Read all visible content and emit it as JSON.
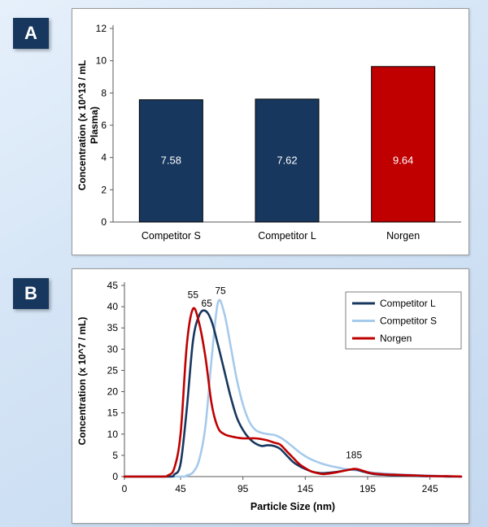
{
  "panels": [
    {
      "label": "A"
    },
    {
      "label": "B"
    }
  ],
  "colors": {
    "navy": "#17375E",
    "light_blue": "#A6CAEC",
    "red": "#C00000",
    "axis": "#595959",
    "white": "#FFFFFF"
  },
  "chart_data": [
    {
      "type": "bar",
      "panel": "A",
      "ylabel": "Concentration (x 10^13 / mL Plasma)",
      "ylabel_lines": [
        "Concentration (x 10^13 / mL",
        "Plasma)"
      ],
      "categories": [
        "Competitor S",
        "Competitor L",
        "Norgen"
      ],
      "values": [
        7.58,
        7.62,
        9.64
      ],
      "value_labels": [
        "7.58",
        "7.62",
        "9.64"
      ],
      "bar_colors": [
        "#17375E",
        "#17375E",
        "#C00000"
      ],
      "data_label_color": "#FFFFFF",
      "ylim": [
        0,
        12
      ],
      "ytick_step": 2,
      "grid": false,
      "legend": null
    },
    {
      "type": "line",
      "panel": "B",
      "xlabel": "Particle Size (nm)",
      "ylabel": "Concentration (x 10^7 / mL)",
      "xlim": [
        0,
        270
      ],
      "xticks": [
        0,
        45,
        95,
        145,
        195,
        245
      ],
      "ylim": [
        0,
        45
      ],
      "ytick_step": 5,
      "grid": false,
      "legend": {
        "position": "top-right",
        "entries": [
          "Competitor L",
          "Competitor S",
          "Norgen"
        ]
      },
      "draw_order": [
        1,
        0,
        2
      ],
      "series": [
        {
          "name": "Competitor L",
          "color": "#17375E",
          "points": [
            [
              0,
              0
            ],
            [
              35,
              0
            ],
            [
              40,
              0.5
            ],
            [
              45,
              3
            ],
            [
              50,
              16
            ],
            [
              55,
              32
            ],
            [
              60,
              38
            ],
            [
              65,
              39
            ],
            [
              70,
              36.5
            ],
            [
              75,
              31
            ],
            [
              80,
              25
            ],
            [
              85,
              19
            ],
            [
              90,
              14
            ],
            [
              95,
              11
            ],
            [
              100,
              9
            ],
            [
              105,
              7.8
            ],
            [
              110,
              7.2
            ],
            [
              115,
              7.4
            ],
            [
              120,
              7.2
            ],
            [
              125,
              6.5
            ],
            [
              130,
              5
            ],
            [
              135,
              3.5
            ],
            [
              140,
              2.5
            ],
            [
              145,
              1.8
            ],
            [
              150,
              1.2
            ],
            [
              155,
              0.9
            ],
            [
              160,
              0.8
            ],
            [
              170,
              1.1
            ],
            [
              180,
              1.6
            ],
            [
              185,
              1.7
            ],
            [
              190,
              1.3
            ],
            [
              195,
              0.9
            ],
            [
              200,
              0.6
            ],
            [
              210,
              0.4
            ],
            [
              220,
              0.3
            ],
            [
              230,
              0.2
            ],
            [
              240,
              0.1
            ],
            [
              250,
              0.1
            ],
            [
              260,
              0
            ],
            [
              270,
              0
            ]
          ]
        },
        {
          "name": "Competitor S",
          "color": "#A6CAEC",
          "points": [
            [
              0,
              0
            ],
            [
              45,
              0
            ],
            [
              50,
              0.3
            ],
            [
              55,
              1
            ],
            [
              60,
              4
            ],
            [
              65,
              12
            ],
            [
              70,
              28
            ],
            [
              75,
              41
            ],
            [
              80,
              38.5
            ],
            [
              85,
              31
            ],
            [
              90,
              23
            ],
            [
              95,
              17
            ],
            [
              100,
              13
            ],
            [
              105,
              11
            ],
            [
              110,
              10.3
            ],
            [
              115,
              10
            ],
            [
              120,
              9.8
            ],
            [
              125,
              9.2
            ],
            [
              130,
              8.2
            ],
            [
              135,
              7
            ],
            [
              140,
              5.8
            ],
            [
              145,
              4.8
            ],
            [
              150,
              4
            ],
            [
              155,
              3.4
            ],
            [
              160,
              2.9
            ],
            [
              165,
              2.5
            ],
            [
              170,
              2.2
            ],
            [
              175,
              1.9
            ],
            [
              180,
              1.7
            ],
            [
              185,
              1.5
            ],
            [
              190,
              1.3
            ],
            [
              195,
              1.1
            ],
            [
              200,
              0.9
            ],
            [
              210,
              0.7
            ],
            [
              220,
              0.5
            ],
            [
              230,
              0.4
            ],
            [
              240,
              0.3
            ],
            [
              250,
              0.2
            ],
            [
              260,
              0.1
            ],
            [
              270,
              0
            ]
          ]
        },
        {
          "name": "Norgen",
          "color": "#C00000",
          "points": [
            [
              0,
              0
            ],
            [
              30,
              0
            ],
            [
              35,
              0.3
            ],
            [
              40,
              2
            ],
            [
              45,
              10
            ],
            [
              50,
              31
            ],
            [
              55,
              39.5
            ],
            [
              60,
              36
            ],
            [
              65,
              28
            ],
            [
              70,
              17
            ],
            [
              75,
              11.5
            ],
            [
              80,
              10
            ],
            [
              85,
              9.5
            ],
            [
              90,
              9.2
            ],
            [
              95,
              9
            ],
            [
              105,
              9
            ],
            [
              110,
              8.8
            ],
            [
              115,
              8.5
            ],
            [
              120,
              8
            ],
            [
              125,
              7.5
            ],
            [
              130,
              6
            ],
            [
              135,
              4.5
            ],
            [
              140,
              3
            ],
            [
              145,
              2
            ],
            [
              150,
              1.2
            ],
            [
              155,
              0.8
            ],
            [
              160,
              0.6
            ],
            [
              170,
              1
            ],
            [
              180,
              1.6
            ],
            [
              185,
              1.8
            ],
            [
              190,
              1.5
            ],
            [
              195,
              1
            ],
            [
              200,
              0.7
            ],
            [
              210,
              0.5
            ],
            [
              220,
              0.4
            ],
            [
              230,
              0.3
            ],
            [
              240,
              0.2
            ],
            [
              250,
              0.1
            ],
            [
              260,
              0.1
            ],
            [
              270,
              0
            ]
          ]
        }
      ],
      "annotations": [
        {
          "text": "55",
          "x": 55,
          "y": 42
        },
        {
          "text": "65",
          "x": 66,
          "y": 40
        },
        {
          "text": "75",
          "x": 77,
          "y": 43
        },
        {
          "text": "185",
          "x": 184,
          "y": 4.3
        }
      ]
    }
  ]
}
